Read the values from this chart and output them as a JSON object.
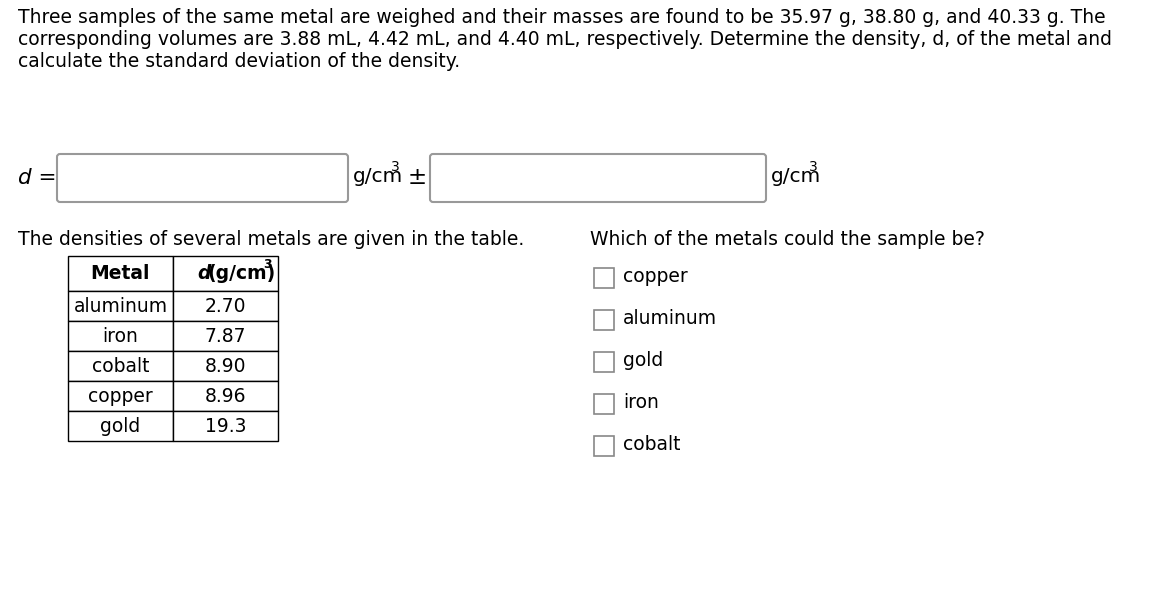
{
  "background_color": "#ffffff",
  "paragraph_lines": [
    "Three samples of the same metal are weighed and their masses are found to be 35.97 g, 38.80 g, and 40.33 g. The",
    "corresponding volumes are 3.88 mL, 4.42 mL, and 4.40 mL, respectively. Determine the density, d, of the metal and",
    "calculate the standard deviation of the density."
  ],
  "d_label": "d =",
  "unit_text": "g/cm",
  "unit_exp": "3",
  "plus_minus": "±",
  "table_title": "The densities of several metals are given in the table.",
  "table_metals": [
    "aluminum",
    "iron",
    "cobalt",
    "copper",
    "gold"
  ],
  "table_densities": [
    "2.70",
    "7.87",
    "8.90",
    "8.96",
    "19.3"
  ],
  "question": "Which of the metals could the sample be?",
  "choices": [
    "copper",
    "aluminum",
    "gold",
    "iron",
    "cobalt"
  ],
  "para_fontsize": 13.5,
  "label_fontsize": 14.5,
  "table_fontsize": 13.5,
  "question_fontsize": 13.5,
  "box_border_color": "#999999",
  "table_border_color": "#000000",
  "checkbox_border_color": "#888888"
}
